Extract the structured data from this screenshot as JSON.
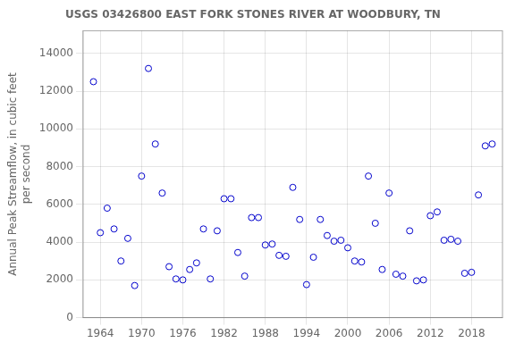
{
  "chart_data": {
    "type": "scatter",
    "title": "USGS 03426800 EAST FORK STONES RIVER AT WOODBURY, TN",
    "ylabel": "Annual Peak Streamflow, in cubic feet\nper second",
    "x": [
      1963,
      1964,
      1965,
      1966,
      1967,
      1968,
      1969,
      1970,
      1971,
      1972,
      1973,
      1974,
      1975,
      1976,
      1977,
      1978,
      1979,
      1980,
      1981,
      1982,
      1983,
      1984,
      1985,
      1986,
      1987,
      1988,
      1989,
      1990,
      1991,
      1992,
      1993,
      1994,
      1995,
      1996,
      1997,
      1998,
      1999,
      2000,
      2001,
      2002,
      2003,
      2004,
      2005,
      2006,
      2007,
      2008,
      2009,
      2010,
      2011,
      2012,
      2013,
      2014,
      2015,
      2016,
      2017,
      2018,
      2019,
      2020,
      2021
    ],
    "values": [
      12500,
      4500,
      5800,
      4700,
      3000,
      4200,
      1700,
      7500,
      13200,
      9200,
      6600,
      2700,
      2050,
      2000,
      2550,
      2900,
      4700,
      2050,
      4600,
      6300,
      6300,
      3450,
      2200,
      5300,
      5300,
      3850,
      3900,
      3300,
      3250,
      6900,
      5200,
      1750,
      3200,
      5200,
      4350,
      4050,
      4100,
      3700,
      3000,
      2950,
      7500,
      5000,
      2550,
      6600,
      2300,
      2200,
      4600,
      1950,
      2000,
      5400,
      5600,
      4100,
      4150,
      4050,
      2350,
      2400,
      6500,
      9100,
      9200
    ],
    "color": "#0000cc",
    "marker": "o",
    "xlim": [
      1961.5,
      2022.5
    ],
    "ylim": [
      0,
      15200
    ],
    "xticks": [
      1964,
      1970,
      1976,
      1982,
      1988,
      1994,
      2000,
      2006,
      2012,
      2018
    ],
    "yticks": [
      0,
      2000,
      4000,
      6000,
      8000,
      10000,
      12000,
      14000
    ],
    "grid": true
  }
}
